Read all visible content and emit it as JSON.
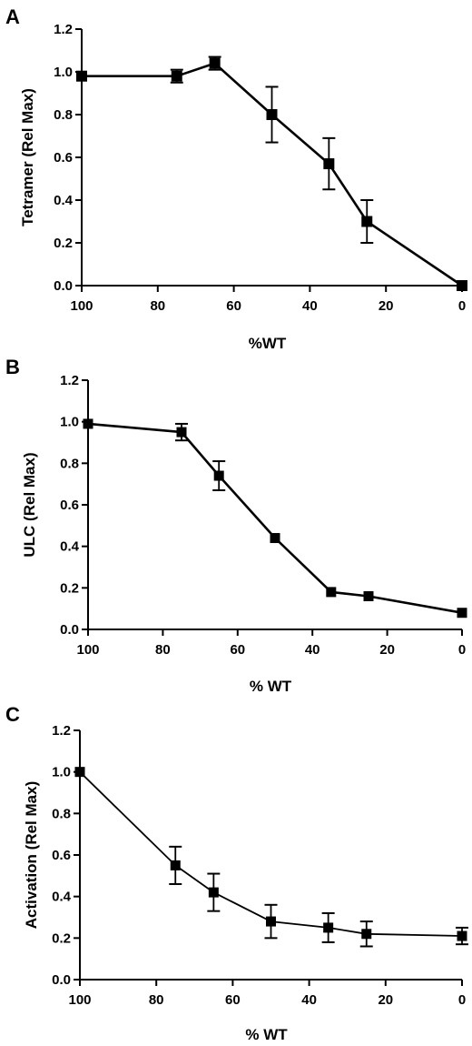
{
  "chart_data": [
    {
      "type": "line",
      "panel": "A",
      "xlabel": "%WT",
      "ylabel": "Tetramer (Rel Max)",
      "xlim": [
        100,
        0
      ],
      "ylim": [
        0,
        1.2
      ],
      "x_reversed": true,
      "xticks": [
        "100",
        "80",
        "60",
        "40",
        "20",
        "0"
      ],
      "yticks": [
        "0.0",
        "0.2",
        "0.4",
        "0.6",
        "0.8",
        "1.0",
        "1.2"
      ],
      "series": [
        {
          "x": [
            100,
            75,
            65,
            50,
            35,
            25,
            0
          ],
          "y": [
            0.98,
            0.98,
            1.04,
            0.8,
            0.57,
            0.3,
            0.0
          ],
          "err": [
            0.01,
            0.03,
            0.03,
            0.13,
            0.12,
            0.1,
            0.01
          ]
        }
      ]
    },
    {
      "type": "line",
      "panel": "B",
      "xlabel": "% WT",
      "ylabel": "ULC (Rel Max)",
      "xlim": [
        100,
        0
      ],
      "ylim": [
        0,
        1.2
      ],
      "x_reversed": true,
      "xticks": [
        "100",
        "80",
        "60",
        "40",
        "20",
        "0"
      ],
      "yticks": [
        "0.0",
        "0.2",
        "0.4",
        "0.6",
        "0.8",
        "1.0",
        "1.2"
      ],
      "series": [
        {
          "x": [
            100,
            75,
            65,
            50,
            35,
            25,
            0
          ],
          "y": [
            0.99,
            0.95,
            0.74,
            0.44,
            0.18,
            0.16,
            0.08
          ],
          "err": [
            0.01,
            0.04,
            0.07,
            0.01,
            0.01,
            0.01,
            0.01
          ]
        }
      ]
    },
    {
      "type": "line",
      "panel": "C",
      "xlabel": "% WT",
      "ylabel": "Activation (Rel Max)",
      "xlim": [
        100,
        0
      ],
      "ylim": [
        0,
        1.2
      ],
      "x_reversed": true,
      "xticks": [
        "100",
        "80",
        "60",
        "40",
        "20",
        "0"
      ],
      "yticks": [
        "0.0",
        "0.2",
        "0.4",
        "0.6",
        "0.8",
        "1.0",
        "1.2"
      ],
      "series": [
        {
          "x": [
            100,
            75,
            65,
            50,
            35,
            25,
            0
          ],
          "y": [
            1.0,
            0.55,
            0.42,
            0.28,
            0.25,
            0.22,
            0.21
          ],
          "err": [
            0.01,
            0.09,
            0.09,
            0.08,
            0.07,
            0.06,
            0.04
          ]
        }
      ]
    }
  ]
}
